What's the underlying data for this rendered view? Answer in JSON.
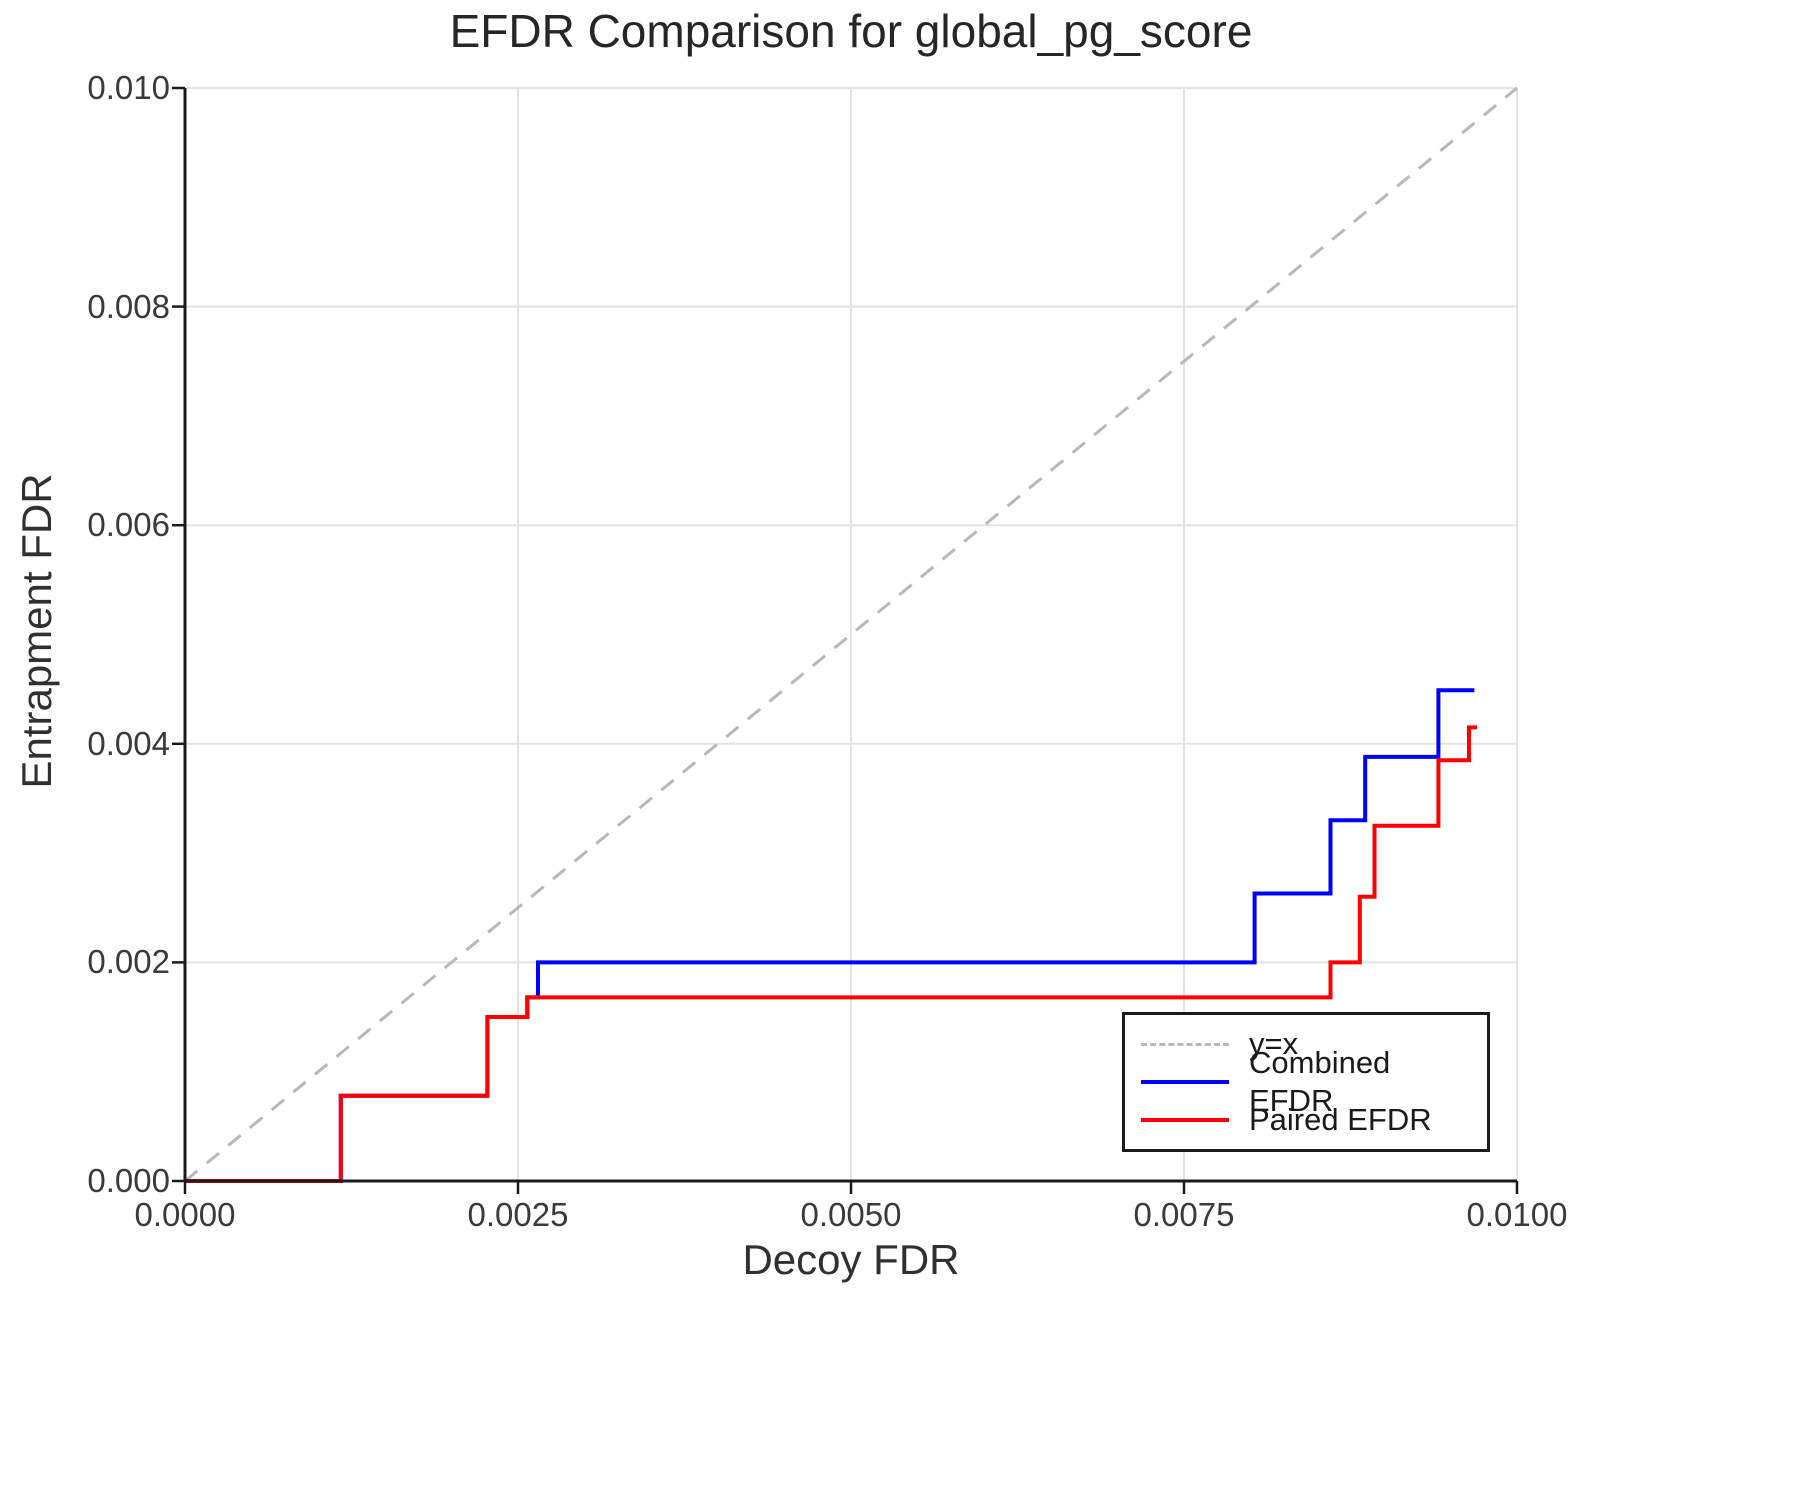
{
  "title": "EFDR Comparison for global_pg_score",
  "axes": {
    "x_label": "Decoy FDR",
    "y_label": "Entrapment FDR",
    "x_range": [
      0.0,
      0.01
    ],
    "y_range": [
      0.0,
      0.01
    ],
    "x_ticks": [
      {
        "value": 0.0,
        "label": "0.0000"
      },
      {
        "value": 0.0025,
        "label": "0.0025"
      },
      {
        "value": 0.005,
        "label": "0.0050"
      },
      {
        "value": 0.0075,
        "label": "0.0075"
      },
      {
        "value": 0.01,
        "label": "0.0100"
      }
    ],
    "y_ticks": [
      {
        "value": 0.0,
        "label": "0.000"
      },
      {
        "value": 0.002,
        "label": "0.002"
      },
      {
        "value": 0.004,
        "label": "0.004"
      },
      {
        "value": 0.006,
        "label": "0.006"
      },
      {
        "value": 0.008,
        "label": "0.008"
      },
      {
        "value": 0.01,
        "label": "0.010"
      }
    ],
    "grid": true
  },
  "legend": {
    "position": "lower right",
    "items": [
      {
        "label": "y=x",
        "color": "#b8b8b8",
        "style": "dashed"
      },
      {
        "label": "Combined EFDR",
        "color": "#0000ff",
        "style": "solid"
      },
      {
        "label": "Paired EFDR",
        "color": "#ff0000",
        "style": "solid"
      }
    ]
  },
  "chart_data": {
    "type": "line",
    "subtype": "step",
    "title": "EFDR Comparison for global_pg_score",
    "xlabel": "Decoy FDR",
    "ylabel": "Entrapment FDR",
    "xlim": [
      0.0,
      0.01
    ],
    "ylim": [
      0.0,
      0.01
    ],
    "reference_line": {
      "name": "y=x",
      "from": [
        0.0,
        0.0
      ],
      "to": [
        0.01,
        0.01
      ],
      "color": "#b8b8b8",
      "style": "dashed"
    },
    "series": [
      {
        "name": "Combined EFDR",
        "color": "#0000ff",
        "points": [
          [
            0.0,
            0.0
          ],
          [
            0.00117,
            0.0
          ],
          [
            0.00117,
            0.00078
          ],
          [
            0.00227,
            0.00078
          ],
          [
            0.00227,
            0.0015
          ],
          [
            0.00257,
            0.0015
          ],
          [
            0.00257,
            0.00168
          ],
          [
            0.00265,
            0.00168
          ],
          [
            0.00265,
            0.002
          ],
          [
            0.00803,
            0.002
          ],
          [
            0.00803,
            0.00263
          ],
          [
            0.0086,
            0.00263
          ],
          [
            0.0086,
            0.0033
          ],
          [
            0.00886,
            0.0033
          ],
          [
            0.00886,
            0.00388
          ],
          [
            0.00941,
            0.00388
          ],
          [
            0.00941,
            0.00449
          ],
          [
            0.00968,
            0.00449
          ]
        ]
      },
      {
        "name": "Paired EFDR",
        "color": "#ff0000",
        "points": [
          [
            0.0,
            0.0
          ],
          [
            0.00117,
            0.0
          ],
          [
            0.00117,
            0.00078
          ],
          [
            0.00227,
            0.00078
          ],
          [
            0.00227,
            0.0015
          ],
          [
            0.00257,
            0.0015
          ],
          [
            0.00257,
            0.00168
          ],
          [
            0.0086,
            0.00168
          ],
          [
            0.0086,
            0.002
          ],
          [
            0.00882,
            0.002
          ],
          [
            0.00882,
            0.0026
          ],
          [
            0.00893,
            0.0026
          ],
          [
            0.00893,
            0.00325
          ],
          [
            0.00941,
            0.00325
          ],
          [
            0.00941,
            0.00385
          ],
          [
            0.00964,
            0.00385
          ],
          [
            0.00964,
            0.00415
          ],
          [
            0.0097,
            0.00415
          ]
        ]
      }
    ]
  }
}
